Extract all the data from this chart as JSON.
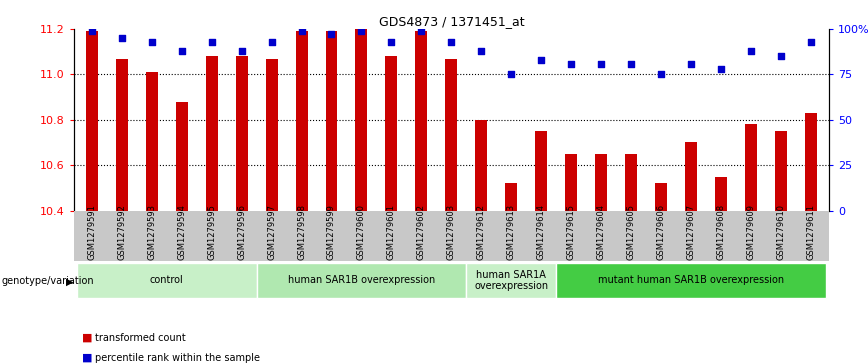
{
  "title": "GDS4873 / 1371451_at",
  "samples": [
    "GSM1279591",
    "GSM1279592",
    "GSM1279593",
    "GSM1279594",
    "GSM1279595",
    "GSM1279596",
    "GSM1279597",
    "GSM1279598",
    "GSM1279599",
    "GSM1279600",
    "GSM1279601",
    "GSM1279602",
    "GSM1279603",
    "GSM1279612",
    "GSM1279613",
    "GSM1279614",
    "GSM1279615",
    "GSM1279604",
    "GSM1279605",
    "GSM1279606",
    "GSM1279607",
    "GSM1279608",
    "GSM1279609",
    "GSM1279610",
    "GSM1279611"
  ],
  "bar_values": [
    11.19,
    11.07,
    11.01,
    10.88,
    11.08,
    11.08,
    11.07,
    11.19,
    11.19,
    11.2,
    11.08,
    11.19,
    11.07,
    10.8,
    10.52,
    10.75,
    10.65,
    10.65,
    10.65,
    10.52,
    10.7,
    10.55,
    10.78,
    10.75,
    10.83
  ],
  "percentile_values": [
    99,
    95,
    93,
    88,
    93,
    88,
    93,
    99,
    97,
    99,
    93,
    99,
    93,
    88,
    75,
    83,
    81,
    81,
    81,
    75,
    81,
    78,
    88,
    85,
    93
  ],
  "ymin": 10.4,
  "ymax": 11.2,
  "yticks": [
    10.4,
    10.6,
    10.8,
    11.0,
    11.2
  ],
  "right_yticks": [
    0,
    25,
    50,
    75,
    100
  ],
  "right_ytick_labels": [
    "0",
    "25",
    "50",
    "75",
    "100%"
  ],
  "bar_color": "#cc0000",
  "dot_color": "#0000cc",
  "background_color": "#ffffff",
  "tick_bg_color": "#c8c8c8",
  "groups": [
    {
      "label": "control",
      "start": 0,
      "end": 6,
      "color": "#c8f0c8"
    },
    {
      "label": "human SAR1B overexpression",
      "start": 6,
      "end": 13,
      "color": "#b0e8b0"
    },
    {
      "label": "human SAR1A\noverexpression",
      "start": 13,
      "end": 16,
      "color": "#c8f0c8"
    },
    {
      "label": "mutant human SAR1B overexpression",
      "start": 16,
      "end": 25,
      "color": "#44cc44"
    }
  ],
  "group_label_prefix": "genotype/variation",
  "legend_items": [
    {
      "label": "transformed count",
      "color": "#cc0000"
    },
    {
      "label": "percentile rank within the sample",
      "color": "#0000cc"
    }
  ],
  "bar_width": 0.4
}
